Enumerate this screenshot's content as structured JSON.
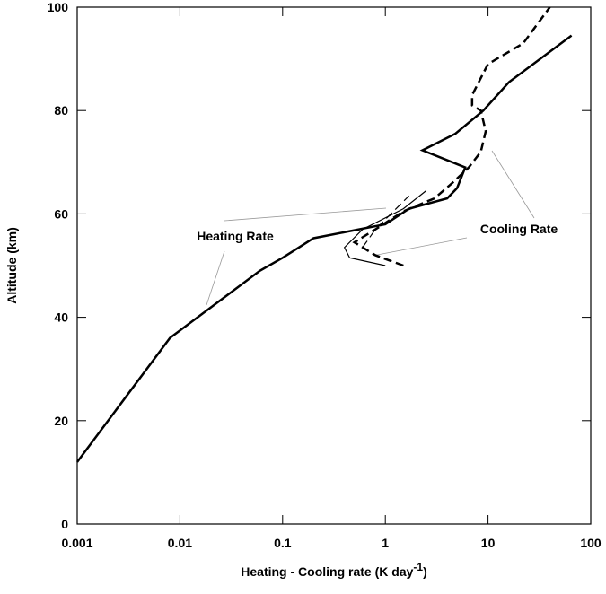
{
  "chart_data": {
    "type": "line",
    "xlabel": "Heating - Cooling rate (K day",
    "xlabel_sup": "-1",
    "xlabel_end": ")",
    "ylabel": "Altitude (km)",
    "xscale": "log",
    "xlim": [
      0.001,
      100
    ],
    "xticks": [
      0.001,
      0.01,
      0.1,
      1,
      10,
      100
    ],
    "ylim": [
      0,
      100
    ],
    "yticks": [
      0,
      20,
      40,
      60,
      80,
      100
    ],
    "series": [
      {
        "name": "Heating Rate",
        "color": "#000000",
        "style": "solid",
        "width": 2.5,
        "x": [
          0.001,
          0.008,
          0.06,
          0.1,
          0.2,
          1,
          1.7,
          4,
          5,
          6,
          2.3,
          4.8,
          9,
          16,
          65
        ],
        "values": [
          12,
          36,
          49,
          51.5,
          55.3,
          58,
          61,
          63,
          65,
          69,
          72.3,
          75.5,
          80,
          85.5,
          94.5
        ]
      },
      {
        "name": "Cooling Rate",
        "color": "#000000",
        "style": "dashed",
        "width": 2.5,
        "x": [
          1.5,
          0.8,
          0.5,
          0.8,
          1.5,
          3,
          4.5,
          6.5,
          8.5,
          9.5,
          8.5,
          7,
          7,
          10,
          22,
          40
        ],
        "values": [
          50,
          52,
          54.5,
          57,
          60.5,
          63,
          66,
          69,
          72,
          76,
          80,
          81,
          83,
          89,
          93,
          100
        ]
      },
      {
        "color": "#000000",
        "style": "solid",
        "width": 1.2,
        "x": [
          1,
          0.45,
          0.4,
          0.6,
          1.5,
          2.5
        ],
        "values": [
          50,
          51.5,
          53.5,
          57,
          61,
          64.5
        ]
      },
      {
        "color": "#000000",
        "style": "dashed",
        "width": 1.2,
        "x": [
          0.6,
          0.8,
          1.2,
          1.7
        ],
        "values": [
          53.5,
          57,
          60.5,
          63.5
        ]
      }
    ]
  }
}
